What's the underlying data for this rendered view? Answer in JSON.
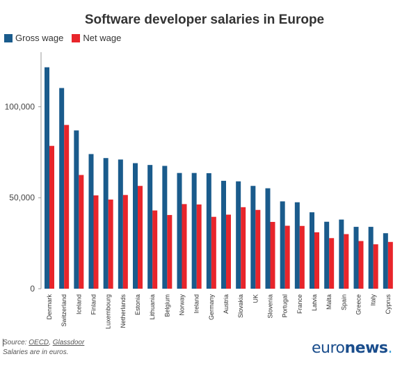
{
  "chart_data": {
    "type": "bar",
    "title": "Software developer salaries in Europe",
    "categories": [
      "Denmark",
      "Switzerland",
      "Iceland",
      "Finland",
      "Luxembourg",
      "Netherlands",
      "Estonia",
      "Lithuania",
      "Belgium",
      "Norway",
      "Ireland",
      "Germany",
      "Austria",
      "Slovakia",
      "UK",
      "Slovenia",
      "Portugal",
      "France",
      "Latvia",
      "Malta",
      "Spain",
      "Greece",
      "Italy",
      "Cyprus"
    ],
    "series": [
      {
        "name": "Gross wage",
        "color": "#1a5b8c",
        "values": [
          121700,
          110300,
          87000,
          74000,
          71800,
          71000,
          69000,
          68000,
          67500,
          63600,
          63600,
          63500,
          59300,
          59000,
          56500,
          55200,
          48000,
          47500,
          42000,
          36800,
          38000,
          34000,
          34000,
          30500
        ]
      },
      {
        "name": "Net wage",
        "color": "#e8252b",
        "values": [
          78500,
          90000,
          62500,
          51300,
          49000,
          51500,
          56500,
          43000,
          40500,
          46500,
          46300,
          39500,
          40700,
          44800,
          43300,
          36700,
          34600,
          34500,
          31000,
          27800,
          30000,
          26200,
          24400,
          25700
        ]
      }
    ],
    "ylim": [
      0,
      130000
    ],
    "yticks": [
      0,
      50000,
      100000
    ],
    "ytick_labels": [
      "0",
      "50,000",
      "100,000"
    ],
    "legend_position": "top-left",
    "grid": false
  },
  "footer": {
    "source_prefix": "Source: ",
    "source_oecd": "OECD",
    "source_sep": ", ",
    "source_glassdoor": "Glassdoor",
    "note": "Salaries are in euros."
  },
  "logo": {
    "part1": "euro",
    "part2": "news",
    "part3": "."
  }
}
